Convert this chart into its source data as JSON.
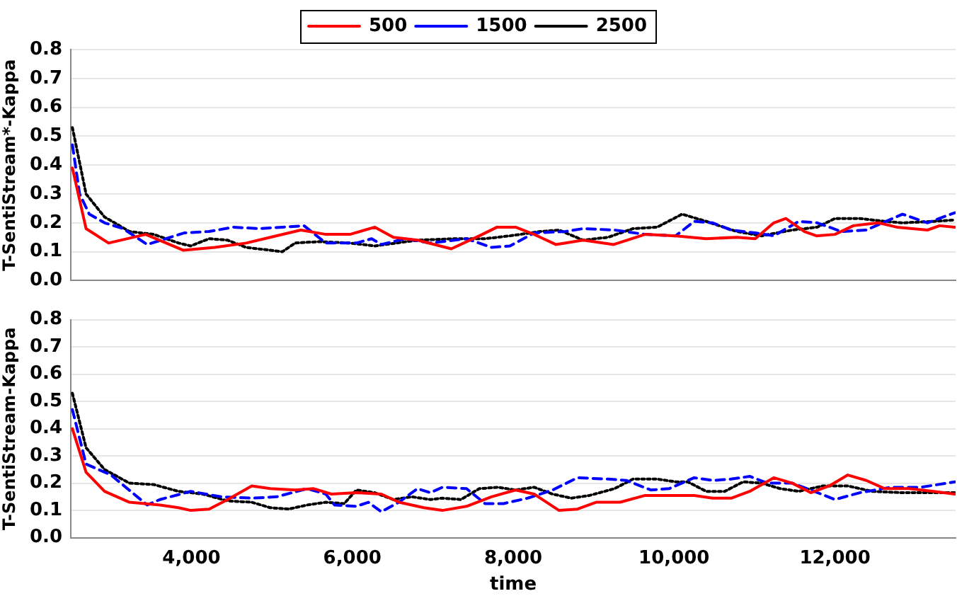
{
  "chart_data": [
    {
      "type": "line",
      "ylabel": "T-SentiStream*-Kappa",
      "legend": "top",
      "tick_labels": "y",
      "grid": "y",
      "marker": "none",
      "xlim": [
        2500,
        13500
      ],
      "ylim": [
        0,
        0.8
      ],
      "yticks": [
        {
          "value": 0,
          "label": "0.0"
        },
        {
          "value": 0.1,
          "label": "0.1"
        },
        {
          "value": 0.2,
          "label": "0.2"
        },
        {
          "value": 0.3,
          "label": "0.3"
        },
        {
          "value": 0.4,
          "label": "0.4"
        },
        {
          "value": 0.5,
          "label": "0.5"
        },
        {
          "value": 0.6,
          "label": "0.6"
        },
        {
          "value": 0.7,
          "label": "0.7"
        },
        {
          "value": 0.8,
          "label": "0.8"
        }
      ],
      "series": [
        {
          "name": "500",
          "color": "#ff0000",
          "line_style": "solid",
          "x": [
            2520,
            2690,
            2970,
            3430,
            3900,
            4290,
            4680,
            4980,
            5360,
            5670,
            5970,
            6280,
            6510,
            6810,
            7230,
            7580,
            7800,
            8030,
            8260,
            8530,
            8870,
            9250,
            9640,
            10020,
            10400,
            10780,
            11010,
            11240,
            11390,
            11620,
            11770,
            12000,
            12230,
            12540,
            12770,
            13150,
            13300,
            13490
          ],
          "values": [
            0.39,
            0.18,
            0.13,
            0.16,
            0.105,
            0.115,
            0.13,
            0.15,
            0.175,
            0.16,
            0.16,
            0.185,
            0.15,
            0.14,
            0.11,
            0.155,
            0.185,
            0.185,
            0.16,
            0.125,
            0.14,
            0.125,
            0.16,
            0.155,
            0.145,
            0.15,
            0.145,
            0.2,
            0.215,
            0.17,
            0.155,
            0.16,
            0.19,
            0.2,
            0.185,
            0.175,
            0.19,
            0.185
          ]
        },
        {
          "name": "1500",
          "color": "#0000ff",
          "line_style": "dashed",
          "x": [
            2520,
            2610,
            2730,
            2920,
            3150,
            3450,
            3680,
            3910,
            4220,
            4520,
            4830,
            5130,
            5400,
            5670,
            6050,
            6240,
            6360,
            6660,
            6970,
            7420,
            7730,
            7960,
            8260,
            8650,
            8870,
            9260,
            9640,
            10020,
            10250,
            10480,
            10710,
            11010,
            11240,
            11550,
            11780,
            12080,
            12390,
            12840,
            13150,
            13490
          ],
          "values": [
            0.47,
            0.3,
            0.23,
            0.2,
            0.18,
            0.125,
            0.145,
            0.165,
            0.17,
            0.185,
            0.18,
            0.185,
            0.19,
            0.13,
            0.13,
            0.145,
            0.125,
            0.145,
            0.13,
            0.145,
            0.115,
            0.12,
            0.165,
            0.17,
            0.18,
            0.175,
            0.16,
            0.155,
            0.205,
            0.2,
            0.175,
            0.165,
            0.155,
            0.205,
            0.2,
            0.17,
            0.175,
            0.23,
            0.2,
            0.235
          ]
        },
        {
          "name": "2500",
          "color": "#000000",
          "line_style": "dotted",
          "x": [
            2520,
            2690,
            2920,
            3230,
            3530,
            3840,
            3990,
            4220,
            4450,
            4680,
            4980,
            5130,
            5290,
            5590,
            5970,
            6280,
            6810,
            7270,
            7650,
            7960,
            8340,
            8570,
            8870,
            9180,
            9490,
            9790,
            10100,
            10400,
            10780,
            11090,
            11470,
            11780,
            12000,
            12310,
            12620,
            12840,
            13230,
            13490
          ],
          "values": [
            0.53,
            0.3,
            0.22,
            0.17,
            0.16,
            0.13,
            0.12,
            0.145,
            0.14,
            0.115,
            0.105,
            0.1,
            0.13,
            0.135,
            0.13,
            0.12,
            0.14,
            0.145,
            0.145,
            0.155,
            0.17,
            0.175,
            0.14,
            0.15,
            0.18,
            0.185,
            0.23,
            0.205,
            0.17,
            0.155,
            0.175,
            0.185,
            0.215,
            0.215,
            0.205,
            0.2,
            0.205,
            0.21
          ]
        }
      ]
    },
    {
      "type": "line",
      "ylabel": "T-SentiStream-Kappa",
      "xlabel": "time",
      "grid": "y",
      "marker": "none",
      "xlim": [
        2500,
        13500
      ],
      "xticks": [
        {
          "value": 4000,
          "label": "4,000"
        },
        {
          "value": 6000,
          "label": "6,000"
        },
        {
          "value": 8000,
          "label": "8,000"
        },
        {
          "value": 10000,
          "label": "10,000"
        },
        {
          "value": 12000,
          "label": "12,000"
        }
      ],
      "ylim": [
        0,
        0.8
      ],
      "yticks": [
        {
          "value": 0,
          "label": "0.0"
        },
        {
          "value": 0.1,
          "label": "0.1"
        },
        {
          "value": 0.2,
          "label": "0.2"
        },
        {
          "value": 0.3,
          "label": "0.3"
        },
        {
          "value": 0.4,
          "label": "0.4"
        },
        {
          "value": 0.5,
          "label": "0.5"
        },
        {
          "value": 0.6,
          "label": "0.6"
        },
        {
          "value": 0.7,
          "label": "0.7"
        },
        {
          "value": 0.8,
          "label": "0.8"
        }
      ],
      "series": [
        {
          "color": "#ff0000",
          "line_style": "solid",
          "x": [
            2520,
            2690,
            2920,
            3230,
            3610,
            3840,
            3990,
            4220,
            4450,
            4750,
            4980,
            5290,
            5520,
            5740,
            6050,
            6360,
            6580,
            6890,
            7120,
            7420,
            7730,
            8030,
            8260,
            8570,
            8800,
            9030,
            9330,
            9640,
            9940,
            10250,
            10480,
            10710,
            10940,
            11240,
            11470,
            11700,
            11930,
            12160,
            12390,
            12620,
            12920,
            13230,
            13490
          ],
          "values": [
            0.4,
            0.24,
            0.17,
            0.13,
            0.12,
            0.11,
            0.1,
            0.105,
            0.14,
            0.19,
            0.18,
            0.175,
            0.18,
            0.16,
            0.165,
            0.16,
            0.13,
            0.11,
            0.1,
            0.115,
            0.15,
            0.175,
            0.16,
            0.1,
            0.105,
            0.13,
            0.13,
            0.155,
            0.155,
            0.155,
            0.145,
            0.145,
            0.17,
            0.22,
            0.2,
            0.165,
            0.19,
            0.23,
            0.21,
            0.18,
            0.18,
            0.17,
            0.16
          ]
        },
        {
          "color": "#0000ff",
          "line_style": "dashed",
          "x": [
            2520,
            2690,
            3000,
            3450,
            3610,
            3990,
            4370,
            4750,
            5060,
            5440,
            5670,
            5780,
            6050,
            6200,
            6360,
            6580,
            6810,
            6970,
            7120,
            7420,
            7650,
            7880,
            8180,
            8490,
            8800,
            9180,
            9410,
            9710,
            9940,
            10250,
            10480,
            10710,
            10940,
            11160,
            11470,
            11700,
            12000,
            12310,
            12690,
            13070,
            13490
          ],
          "values": [
            0.47,
            0.27,
            0.23,
            0.12,
            0.14,
            0.17,
            0.15,
            0.145,
            0.15,
            0.18,
            0.16,
            0.12,
            0.115,
            0.13,
            0.095,
            0.13,
            0.18,
            0.165,
            0.185,
            0.18,
            0.125,
            0.125,
            0.145,
            0.175,
            0.22,
            0.215,
            0.21,
            0.175,
            0.18,
            0.22,
            0.21,
            0.215,
            0.225,
            0.2,
            0.2,
            0.175,
            0.14,
            0.165,
            0.185,
            0.185,
            0.205
          ]
        },
        {
          "color": "#000000",
          "line_style": "dotted",
          "x": [
            2520,
            2690,
            2920,
            3230,
            3530,
            3840,
            4140,
            4450,
            4750,
            4980,
            5210,
            5440,
            5670,
            5900,
            6050,
            6280,
            6510,
            6740,
            6970,
            7120,
            7350,
            7580,
            7810,
            8030,
            8260,
            8490,
            8720,
            8950,
            9260,
            9490,
            9790,
            10020,
            10170,
            10400,
            10630,
            10860,
            11090,
            11320,
            11550,
            11850,
            12160,
            12460,
            12840,
            13490
          ],
          "values": [
            0.53,
            0.33,
            0.25,
            0.2,
            0.195,
            0.17,
            0.16,
            0.135,
            0.13,
            0.11,
            0.105,
            0.12,
            0.13,
            0.125,
            0.175,
            0.165,
            0.14,
            0.15,
            0.14,
            0.145,
            0.14,
            0.18,
            0.185,
            0.175,
            0.185,
            0.16,
            0.145,
            0.155,
            0.18,
            0.215,
            0.215,
            0.205,
            0.205,
            0.17,
            0.17,
            0.205,
            0.2,
            0.18,
            0.17,
            0.19,
            0.19,
            0.17,
            0.165,
            0.165
          ]
        }
      ]
    }
  ]
}
